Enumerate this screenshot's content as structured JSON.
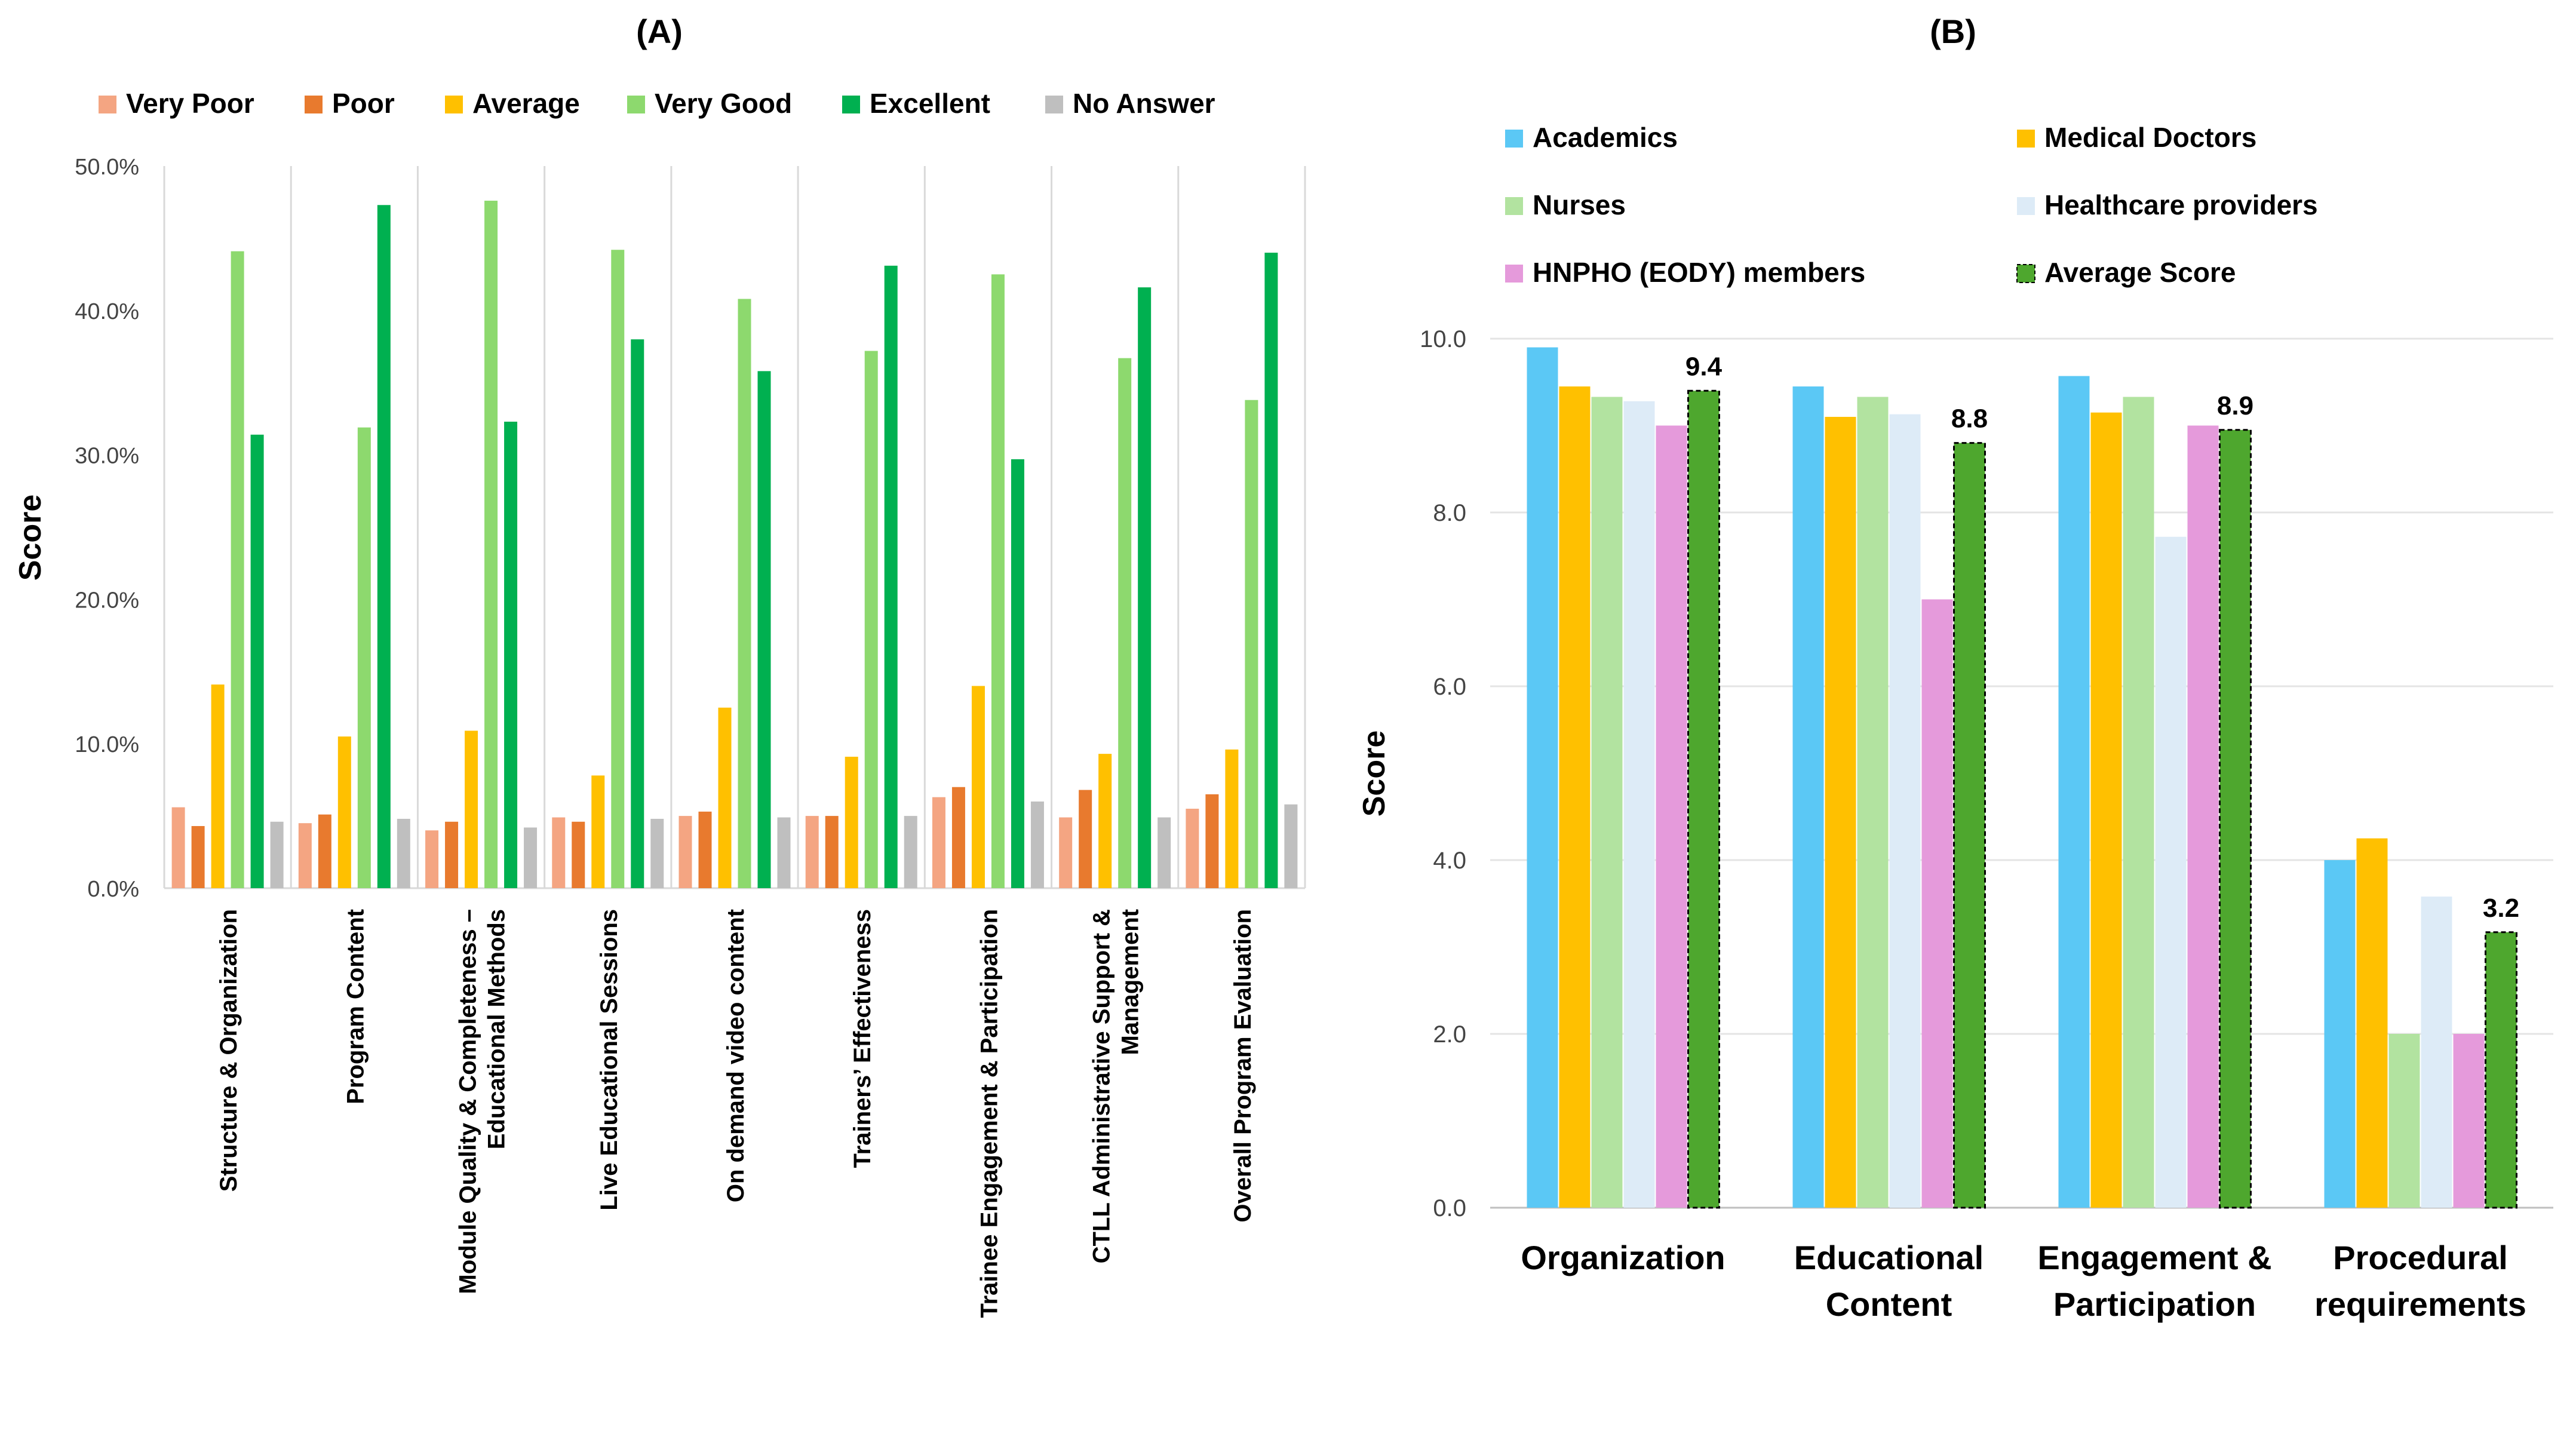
{
  "chart_data": [
    {
      "panel_label": "(A)",
      "type": "bar",
      "ylabel": "Score",
      "ylim": [
        0,
        50
      ],
      "y_ticks": [
        "0.0%",
        "10.0%",
        "20.0%",
        "30.0%",
        "40.0%",
        "50.0%"
      ],
      "grid": "vertical separators between categories",
      "legend_position": "top",
      "categories": [
        {
          "lines": [
            "Structure & Organization"
          ]
        },
        {
          "lines": [
            "Program Content"
          ]
        },
        {
          "lines": [
            "Module Quality & Completeness –",
            "Educational Methods"
          ]
        },
        {
          "lines": [
            "Live Educational Sessions"
          ]
        },
        {
          "lines": [
            "On demand video content"
          ]
        },
        {
          "lines": [
            "Trainers’ Effectiveness"
          ]
        },
        {
          "lines": [
            "Trainee Engagement & Participation"
          ]
        },
        {
          "lines": [
            "CTLL Administrative Support &",
            "Management"
          ]
        },
        {
          "lines": [
            "Overall Program Evaluation"
          ]
        }
      ],
      "series": [
        {
          "name": "Very Poor",
          "color": "#F4A582",
          "values": [
            5.6,
            4.5,
            4.0,
            4.9,
            5.0,
            5.0,
            6.3,
            4.9,
            5.5
          ]
        },
        {
          "name": "Poor",
          "color": "#E87A2E",
          "values": [
            4.3,
            5.1,
            4.6,
            4.6,
            5.3,
            5.0,
            7.0,
            6.8,
            6.5
          ]
        },
        {
          "name": "Average",
          "color": "#FFC000",
          "values": [
            14.1,
            10.5,
            10.9,
            7.8,
            12.5,
            9.1,
            14.0,
            9.3,
            9.6
          ]
        },
        {
          "name": "Very Good",
          "color": "#8DD96E",
          "values": [
            44.1,
            31.9,
            47.6,
            44.2,
            40.8,
            37.2,
            42.5,
            36.7,
            33.8
          ]
        },
        {
          "name": "Excellent",
          "color": "#00B050",
          "values": [
            31.4,
            47.3,
            32.3,
            38.0,
            35.8,
            43.1,
            29.7,
            41.6,
            44.0
          ]
        },
        {
          "name": "No Answer",
          "color": "#BFBFBF",
          "values": [
            4.6,
            4.8,
            4.2,
            4.8,
            4.9,
            5.0,
            6.0,
            4.9,
            5.8
          ]
        }
      ]
    },
    {
      "panel_label": "(B)",
      "type": "bar",
      "ylabel": "Score",
      "ylim": [
        0,
        10
      ],
      "y_ticks": [
        "0.0",
        "2.0",
        "4.0",
        "6.0",
        "8.0",
        "10.0"
      ],
      "grid": "horizontal gridlines",
      "legend_position": "top",
      "categories": [
        {
          "lines": [
            "Organization"
          ]
        },
        {
          "lines": [
            "Educational",
            "Content"
          ]
        },
        {
          "lines": [
            "Engagement &",
            "Participation"
          ]
        },
        {
          "lines": [
            "Procedural",
            "requirements"
          ]
        }
      ],
      "series": [
        {
          "name": "Academics",
          "color": "#5BC8F5",
          "values": [
            9.9,
            9.45,
            9.57,
            4.0
          ]
        },
        {
          "name": "Medical Doctors",
          "color": "#FFC000",
          "values": [
            9.45,
            9.1,
            9.15,
            4.25
          ]
        },
        {
          "name": "Nurses",
          "color": "#B2E3A0",
          "values": [
            9.33,
            9.33,
            9.33,
            2.0
          ]
        },
        {
          "name": "Healthcare providers",
          "color": "#DDEBF7",
          "values": [
            9.28,
            9.13,
            7.72,
            3.58
          ]
        },
        {
          "name": "HNPHO (EODY) members",
          "color": "#E59ADB",
          "values": [
            9.0,
            7.0,
            9.0,
            2.0
          ]
        },
        {
          "name": "Average Score",
          "color": "#4EA72E",
          "values": [
            9.4,
            8.8,
            8.95,
            3.17
          ],
          "labels": [
            "9.4",
            "8.8",
            "8.9",
            "3.2"
          ]
        }
      ]
    }
  ]
}
